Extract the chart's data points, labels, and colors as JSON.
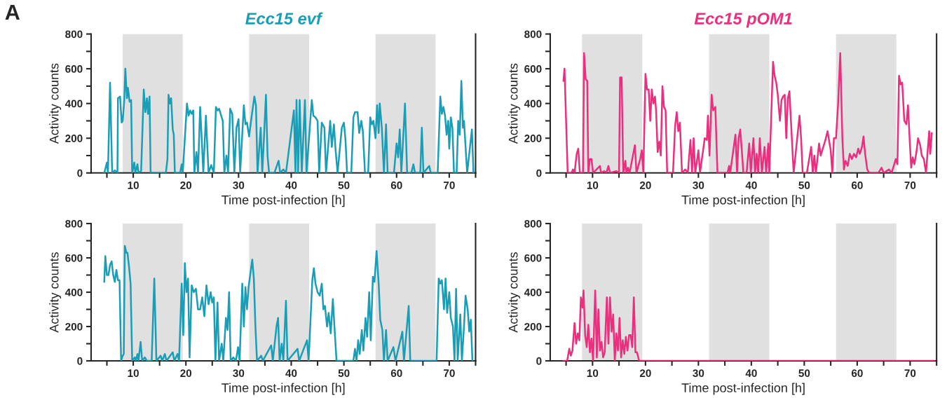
{
  "chart_data": [
    {
      "type": "line",
      "title": "Ecc15 evf",
      "xlabel": "Time post-infection [h]",
      "ylabel": "Activity counts",
      "annotations": [
        "A"
      ],
      "xlim": [
        2,
        75
      ],
      "ylim": [
        0,
        800
      ],
      "xticks": [
        {
          "value": 5,
          "label": null
        },
        10,
        {
          "value": 15,
          "label": null
        },
        20,
        {
          "value": 25,
          "label": null
        },
        30,
        {
          "value": 35,
          "label": null
        },
        40,
        {
          "value": 45,
          "label": null
        },
        50,
        {
          "value": 55,
          "label": null
        },
        60,
        {
          "value": 65,
          "label": null
        },
        70,
        {
          "value": 75,
          "label": null
        }
      ],
      "yticks": [
        0,
        {
          "value": 100,
          "label": null
        },
        200,
        {
          "value": 300,
          "label": null
        },
        400,
        {
          "value": 500,
          "label": null
        },
        600,
        {
          "value": 700,
          "label": null
        },
        800
      ],
      "bands": [
        {
          "axis": "x",
          "from": 8,
          "to": 19.4,
          "color": "#e0e0e0"
        },
        {
          "axis": "x",
          "from": 32,
          "to": 43.4,
          "color": "#e0e0e0"
        },
        {
          "axis": "x",
          "from": 56,
          "to": 67.4,
          "color": "#e0e0e0"
        }
      ],
      "series": [
        {
          "color": "#1a9db5",
          "x": [
            4.5,
            5,
            5.2,
            5.6,
            6.0,
            6.5,
            7,
            7.1,
            7.5,
            7.8,
            8.0,
            8.3,
            8.5,
            8.8,
            9.0,
            9.3,
            9.6,
            9.8,
            10.2,
            10.4,
            10.8,
            11,
            11.5,
            12,
            12.3,
            12.6,
            12.8,
            13.1,
            13.3,
            16.2,
            16.5,
            16.7,
            17.0,
            17.2,
            17.5,
            17.7,
            17.9,
            18.9,
            19.2,
            19.4,
            20.2,
            20.5,
            20.8,
            21.1,
            21.4,
            21.6,
            22,
            22.3,
            22.7,
            23.0,
            23.3,
            23.8,
            24.3,
            24.8,
            25.3,
            25.7,
            26,
            26.3,
            26.6,
            27,
            27.3,
            27.7,
            28,
            28.4,
            28.8,
            29.2,
            29.6,
            30,
            30.3,
            31,
            31.3,
            31.6,
            32,
            32.5,
            33,
            33.3,
            33.6,
            34.2,
            34.5,
            35.2,
            35.5,
            35.8,
            36.8,
            37.6,
            37.9,
            38.5,
            39,
            40.5,
            40.8,
            41.0,
            41.3,
            41.6,
            42.0,
            42.6,
            42.9,
            43.9,
            44.2,
            44.6,
            45,
            45.3,
            45.8,
            46.3,
            46.6,
            47.4,
            47.7,
            48.1,
            48.4,
            48.8,
            49.6,
            50,
            50.3,
            50.6,
            51.4,
            51.8,
            52.1,
            52.6,
            52.9,
            53.3,
            53.6,
            54,
            54.6,
            55,
            55.3,
            55.6,
            56,
            56.3,
            56.6,
            56.8,
            57.2,
            57.6,
            58,
            58.3,
            59.5,
            60,
            60.3,
            60.6,
            60.9,
            61.6,
            62,
            62.8,
            63.2,
            63.5,
            64.5,
            64.8,
            65.1,
            66.2,
            66.5,
            67.8,
            68.3,
            68.6,
            68.9,
            69.2,
            69.5,
            69.8,
            70,
            70.3,
            70.6,
            70.9,
            71.4,
            71.7,
            72.0,
            72.3,
            72.6,
            72.8,
            73.1,
            73.4,
            74.3,
            74.6
          ],
          "values": [
            0,
            60,
            0,
            520,
            0,
            15,
            0,
            430,
            440,
            290,
            300,
            420,
            600,
            430,
            490,
            410,
            420,
            0,
            60,
            0,
            50,
            0,
            10,
            480,
            350,
            430,
            340,
            440,
            0,
            0,
            80,
            450,
            400,
            430,
            250,
            220,
            0,
            0,
            50,
            0,
            400,
            330,
            360,
            340,
            360,
            0,
            120,
            0,
            380,
            200,
            0,
            330,
            0,
            45,
            0,
            380,
            360,
            370,
            340,
            300,
            0,
            100,
            0,
            370,
            340,
            0,
            260,
            310,
            0,
            390,
            280,
            290,
            210,
            330,
            440,
            390,
            0,
            260,
            0,
            450,
            100,
            0,
            0,
            70,
            0,
            20,
            0,
            360,
            0,
            420,
            0,
            420,
            0,
            420,
            0,
            420,
            330,
            320,
            300,
            0,
            290,
            260,
            0,
            300,
            150,
            280,
            140,
            0,
            260,
            290,
            190,
            0,
            0,
            320,
            350,
            350,
            230,
            300,
            240,
            0,
            0,
            320,
            280,
            300,
            200,
            390,
            230,
            400,
            260,
            0,
            280,
            0,
            0,
            170,
            90,
            250,
            0,
            400,
            0,
            0,
            50,
            0,
            0,
            260,
            0,
            40,
            0,
            0,
            440,
            340,
            380,
            330,
            220,
            300,
            140,
            320,
            260,
            0,
            0,
            300,
            220,
            530,
            260,
            300,
            150,
            0,
            250,
            0
          ]
        }
      ]
    },
    {
      "type": "line",
      "title": "Ecc15 pOM1",
      "xlabel": "Time post-infection [h]",
      "ylabel": "Activity counts",
      "xlim": [
        2,
        75
      ],
      "ylim": [
        0,
        800
      ],
      "xticks": [
        {
          "value": 5,
          "label": null
        },
        10,
        {
          "value": 15,
          "label": null
        },
        20,
        {
          "value": 25,
          "label": null
        },
        30,
        {
          "value": 35,
          "label": null
        },
        40,
        {
          "value": 45,
          "label": null
        },
        50,
        {
          "value": 55,
          "label": null
        },
        60,
        {
          "value": 65,
          "label": null
        },
        70,
        {
          "value": 75,
          "label": null
        }
      ],
      "yticks": [
        0,
        {
          "value": 100,
          "label": null
        },
        200,
        {
          "value": 300,
          "label": null
        },
        400,
        {
          "value": 500,
          "label": null
        },
        600,
        {
          "value": 700,
          "label": null
        },
        800
      ],
      "bands": [
        {
          "axis": "x",
          "from": 8,
          "to": 19.4,
          "color": "#e0e0e0"
        },
        {
          "axis": "x",
          "from": 32,
          "to": 43.4,
          "color": "#e0e0e0"
        },
        {
          "axis": "x",
          "from": 56,
          "to": 67.4,
          "color": "#e0e0e0"
        }
      ],
      "series": [
        {
          "color": "#e8307f",
          "x": [
            4.5,
            4.7,
            5.0,
            5.3,
            6,
            6.3,
            6.6,
            7.0,
            7.3,
            7.6,
            8.2,
            8.4,
            8.7,
            9,
            9.2,
            9.5,
            9.8,
            10.1,
            11.4,
            11.6,
            12.2,
            12.6,
            13,
            13.3,
            14.5,
            15.0,
            15.2,
            15.5,
            15.8,
            16.2,
            16.4,
            16.7,
            17,
            18,
            18.3,
            19,
            19.3,
            19.6,
            20,
            20.3,
            20.6,
            20.9,
            21.2,
            21.5,
            21.8,
            22,
            22.3,
            22.6,
            22.9,
            23.2,
            23.5,
            23.8,
            24.1,
            25.2,
            25.6,
            25.9,
            26.2,
            26.5,
            26.9,
            27.5,
            28,
            28.5,
            28.8,
            29.1,
            29.4,
            30.0,
            30.3,
            31.2,
            31.6,
            31.8,
            32.1,
            32.5,
            32.8,
            33.2,
            33.6,
            35.5,
            35.8,
            36,
            37,
            37.3,
            37.6,
            37.9,
            38.2,
            38.5,
            39.1,
            39.6,
            39.9,
            40.4,
            40.7,
            41,
            41.3,
            41.6,
            42,
            42.5,
            42.8,
            43.2,
            43.4,
            44.1,
            44.4,
            44.7,
            45,
            45.4,
            45.7,
            46,
            46.3,
            46.6,
            46.9,
            47.2,
            47.6,
            48,
            48.7,
            49.1,
            49.4,
            49.7,
            50.5,
            51.3,
            51.6,
            51.9,
            52.2,
            52.8,
            53.1,
            53.5,
            54,
            54.4,
            55,
            55.3,
            55.6,
            56,
            56.4,
            56.8,
            57.2,
            57.5,
            57.8,
            58.2,
            58.6,
            59,
            59.4,
            59.8,
            60.2,
            60.5,
            60.9,
            61.2,
            61.5,
            61.9,
            62.3,
            64,
            64.6,
            65,
            66,
            66.5,
            67.3,
            67.6,
            67.9,
            68.2,
            68.5,
            68.9,
            69.3,
            69.6,
            69.9,
            70.2,
            70.5,
            70.8,
            71.2,
            71.5,
            71.9,
            72.2,
            72.6,
            73.0,
            73.6,
            73.8,
            74.1
          ],
          "values": [
            530,
            600,
            300,
            0,
            0,
            20,
            0,
            110,
            140,
            0,
            0,
            690,
            540,
            530,
            0,
            80,
            80,
            0,
            40,
            0,
            10,
            0,
            40,
            0,
            10,
            0,
            550,
            550,
            0,
            70,
            0,
            30,
            0,
            160,
            0,
            80,
            130,
            0,
            570,
            480,
            480,
            300,
            480,
            400,
            440,
            360,
            120,
            180,
            100,
            500,
            380,
            360,
            0,
            0,
            270,
            350,
            240,
            290,
            0,
            20,
            0,
            190,
            0,
            200,
            0,
            130,
            0,
            200,
            190,
            330,
            100,
            450,
            360,
            380,
            0,
            0,
            40,
            0,
            220,
            0,
            200,
            250,
            130,
            0,
            0,
            170,
            0,
            200,
            0,
            110,
            0,
            200,
            0,
            150,
            0,
            170,
            0,
            640,
            560,
            520,
            450,
            300,
            420,
            440,
            450,
            200,
            430,
            470,
            230,
            0,
            210,
            330,
            200,
            0,
            0,
            150,
            0,
            100,
            0,
            170,
            100,
            140,
            190,
            240,
            130,
            0,
            200,
            200,
            400,
            690,
            200,
            20,
            70,
            40,
            110,
            80,
            110,
            90,
            140,
            110,
            150,
            210,
            110,
            20,
            0,
            0,
            30,
            0,
            20,
            0,
            80,
            50,
            560,
            510,
            520,
            300,
            280,
            390,
            200,
            30,
            90,
            50,
            120,
            200,
            160,
            100,
            80,
            0,
            240,
            110,
            230
          ]
        }
      ]
    },
    {
      "type": "line",
      "xlabel": "Time post-infection [h]",
      "ylabel": "Activity counts",
      "xlim": [
        2,
        75
      ],
      "ylim": [
        0,
        800
      ],
      "xticks": [
        {
          "value": 5,
          "label": null
        },
        10,
        {
          "value": 15,
          "label": null
        },
        20,
        {
          "value": 25,
          "label": null
        },
        30,
        {
          "value": 35,
          "label": null
        },
        40,
        {
          "value": 45,
          "label": null
        },
        50,
        {
          "value": 55,
          "label": null
        },
        60,
        {
          "value": 65,
          "label": null
        },
        70,
        {
          "value": 75,
          "label": null
        }
      ],
      "yticks": [
        0,
        {
          "value": 100,
          "label": null
        },
        200,
        {
          "value": 300,
          "label": null
        },
        400,
        {
          "value": 500,
          "label": null
        },
        600,
        {
          "value": 700,
          "label": null
        },
        800
      ],
      "bands": [
        {
          "axis": "x",
          "from": 8,
          "to": 19.4,
          "color": "#e0e0e0"
        },
        {
          "axis": "x",
          "from": 32,
          "to": 43.4,
          "color": "#e0e0e0"
        },
        {
          "axis": "x",
          "from": 56,
          "to": 67.4,
          "color": "#e0e0e0"
        }
      ],
      "series": [
        {
          "color": "#1a9db5",
          "x": [
            4.5,
            4.7,
            5.0,
            5.3,
            5.6,
            5.9,
            6.2,
            6.5,
            6.8,
            7.1,
            7.4,
            7.7,
            8,
            8.2,
            8.4,
            8.7,
            8.9,
            9.2,
            9.5,
            9.8,
            10.3,
            10.5,
            10.8,
            11,
            11.4,
            11.7,
            12.2,
            12.6,
            13.5,
            14.0,
            14.4,
            15.2,
            15.5,
            16,
            16.3,
            17.5,
            17.8,
            18.4,
            18.7,
            19.2,
            19.5,
            19.8,
            20.1,
            20.4,
            20.7,
            21.1,
            21.5,
            21.9,
            22.3,
            22.7,
            23.1,
            23.5,
            23.9,
            24.3,
            24.7,
            25,
            25.3,
            25.6,
            26.0,
            26.3,
            26.8,
            27.1,
            27.6,
            27.9,
            28.2,
            28.5,
            29,
            29.5,
            29.9,
            30.2,
            30.7,
            31,
            31.3,
            31.6,
            31.9,
            32.2,
            32.6,
            32.9,
            33.2,
            33.5,
            34.3,
            34.6,
            36.2,
            36.5,
            37.2,
            37.5,
            37.8,
            38.2,
            38.5,
            39,
            39.3,
            41.2,
            41.5,
            43.0,
            43.3,
            44,
            44.3,
            44.6,
            45,
            45.4,
            45.8,
            46.1,
            46.4,
            46.8,
            47.1,
            47.5,
            47.9,
            48.2,
            48.6,
            51.8,
            52.1,
            52.4,
            52.7,
            53.0,
            53.4,
            53.7,
            54.1,
            54.4,
            54.8,
            55.1,
            55.5,
            55.8,
            56.2,
            56.6,
            56.9,
            57.3,
            57.6,
            58,
            58.3,
            59.4,
            59.8,
            61.1,
            61.4,
            62.3,
            62.6,
            67.6,
            68,
            68.3,
            68.6,
            69.0,
            69.3,
            69.6,
            70,
            70.3,
            70.7,
            71.0,
            71.3,
            71.6,
            72.1,
            72.4,
            72.8,
            73.1,
            73.5,
            73.8,
            74.1,
            74.4
          ],
          "values": [
            460,
            610,
            500,
            500,
            560,
            580,
            500,
            460,
            530,
            470,
            470,
            0,
            30,
            40,
            670,
            630,
            630,
            550,
            450,
            0,
            20,
            0,
            40,
            0,
            110,
            0,
            20,
            0,
            0,
            480,
            0,
            30,
            0,
            40,
            0,
            50,
            0,
            40,
            0,
            450,
            150,
            570,
            400,
            480,
            20,
            440,
            400,
            420,
            300,
            300,
            370,
            260,
            440,
            330,
            400,
            340,
            370,
            0,
            340,
            0,
            100,
            0,
            250,
            180,
            400,
            0,
            20,
            0,
            80,
            0,
            450,
            200,
            430,
            300,
            430,
            500,
            590,
            480,
            200,
            0,
            30,
            0,
            90,
            0,
            200,
            250,
            0,
            100,
            0,
            350,
            0,
            70,
            0,
            120,
            0,
            470,
            540,
            450,
            400,
            380,
            450,
            300,
            320,
            200,
            280,
            160,
            360,
            200,
            0,
            0,
            70,
            0,
            120,
            40,
            180,
            60,
            250,
            140,
            400,
            120,
            490,
            460,
            640,
            450,
            240,
            180,
            0,
            180,
            0,
            80,
            0,
            170,
            0,
            320,
            0,
            0,
            480,
            450,
            470,
            300,
            480,
            280,
            400,
            250,
            200,
            0,
            420,
            0,
            270,
            0,
            200,
            380,
            300,
            170,
            240,
            0
          ]
        }
      ]
    },
    {
      "type": "line",
      "xlabel": "Time post-infection [h]",
      "ylabel": "Activity counts",
      "xlim": [
        2,
        75
      ],
      "ylim": [
        0,
        800
      ],
      "xticks": [
        {
          "value": 5,
          "label": null
        },
        10,
        {
          "value": 15,
          "label": null
        },
        20,
        {
          "value": 25,
          "label": null
        },
        30,
        {
          "value": 35,
          "label": null
        },
        40,
        {
          "value": 45,
          "label": null
        },
        50,
        {
          "value": 55,
          "label": null
        },
        60,
        {
          "value": 65,
          "label": null
        },
        70,
        {
          "value": 75,
          "label": null
        }
      ],
      "yticks": [
        0,
        {
          "value": 100,
          "label": null
        },
        200,
        {
          "value": 300,
          "label": null
        },
        400,
        {
          "value": 500,
          "label": null
        },
        600,
        {
          "value": 700,
          "label": null
        },
        800
      ],
      "bands": [
        {
          "axis": "x",
          "from": 8,
          "to": 19.4,
          "color": "#e0e0e0"
        },
        {
          "axis": "x",
          "from": 32,
          "to": 43.4,
          "color": "#e0e0e0"
        },
        {
          "axis": "x",
          "from": 56,
          "to": 67.4,
          "color": "#e0e0e0"
        }
      ],
      "series": [
        {
          "color": "#e8307f",
          "x": [
            4.5,
            5.2,
            5.6,
            5.9,
            6.2,
            6.6,
            6.9,
            7.2,
            7.5,
            7.8,
            8.1,
            8.3,
            8.6,
            8.9,
            9.2,
            9.5,
            9.8,
            10.1,
            10.5,
            10.8,
            11.1,
            11.4,
            11.7,
            12.0,
            12.3,
            12.7,
            13.0,
            13.3,
            13.6,
            13.9,
            14.2,
            14.5,
            14.8,
            15.1,
            15.4,
            15.7,
            16.0,
            16.3,
            16.6,
            16.9,
            17.2,
            17.5,
            17.8,
            18.1,
            18.4,
            18.8,
            74.5
          ],
          "values": [
            0,
            0,
            70,
            30,
            60,
            220,
            100,
            160,
            120,
            370,
            310,
            410,
            150,
            80,
            210,
            50,
            130,
            0,
            410,
            20,
            300,
            60,
            110,
            20,
            50,
            370,
            100,
            370,
            170,
            270,
            0,
            160,
            60,
            250,
            20,
            120,
            40,
            140,
            60,
            150,
            150,
            80,
            370,
            50,
            50,
            0,
            0
          ]
        }
      ]
    }
  ]
}
